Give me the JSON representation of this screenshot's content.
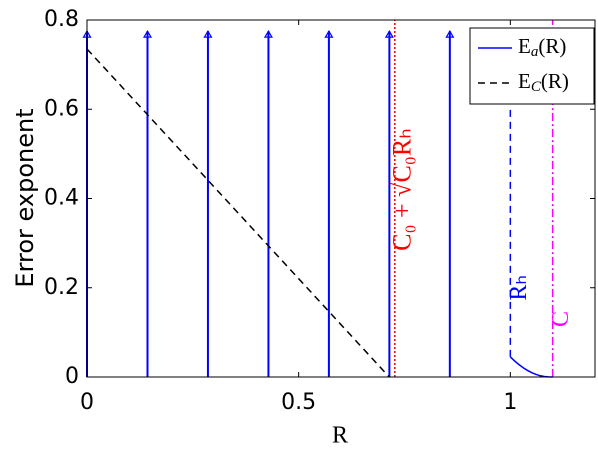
{
  "chart_data": {
    "type": "line",
    "xlabel": "R",
    "ylabel": "Error exponent",
    "xlim": [
      0,
      1.2
    ],
    "ylim": [
      0,
      0.8
    ],
    "xticks": [
      0,
      0.5,
      1
    ],
    "yticks": [
      0,
      0.2,
      0.4,
      0.6,
      0.8
    ],
    "legend": "top-right",
    "series": [
      {
        "name": "Ea(R)",
        "color": "#0000ff",
        "style": "solid",
        "x": [
          1,
          1.01,
          1.02,
          1.03,
          1.04,
          1.05,
          1.06,
          1.07,
          1.08,
          1.09,
          1.1
        ],
        "values": [
          0.045,
          0.036,
          0.028,
          0.021,
          0.015,
          0.01,
          0.006,
          0.003,
          0.0012,
          0.0003,
          0
        ]
      },
      {
        "name": "EC(R)",
        "color": "#000000",
        "style": "dashed",
        "x": [
          0,
          0.714
        ],
        "values": [
          0.735,
          0
        ]
      }
    ],
    "arrows": {
      "color": "#0000ff",
      "x": [
        0,
        0.1429,
        0.2857,
        0.4286,
        0.5714,
        0.7143,
        0.8571
      ],
      "top": 0.775
    },
    "vlines": [
      {
        "label": "C₀ + √C₀Rₕ",
        "x": 0.727,
        "color": "#ff0000",
        "style": "dotted",
        "yrange": [
          0,
          0.8
        ]
      },
      {
        "label": "Rₕ",
        "x": 1,
        "color": "#0000ff",
        "style": "dashed",
        "yrange": [
          0.045,
          0.6
        ]
      },
      {
        "label": "C",
        "x": 1.1,
        "color": "#ff00ff",
        "style": "dashdot",
        "yrange": [
          0,
          0.8
        ]
      }
    ]
  }
}
